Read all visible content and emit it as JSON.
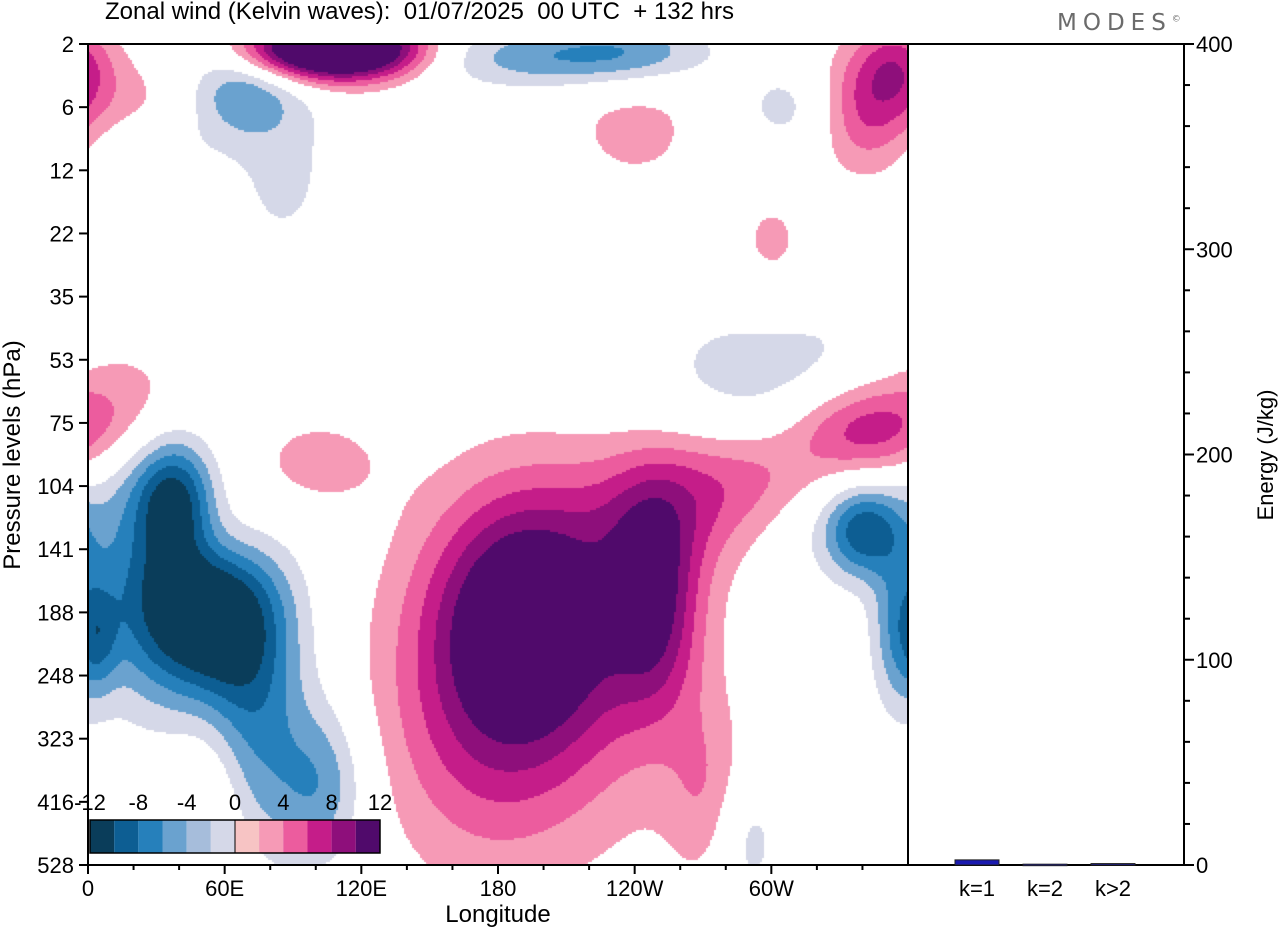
{
  "header": {
    "title": "Zonal wind (Kelvin waves):  01/07/2025  00 UTC  + 132 hrs",
    "brand": "MODES",
    "brand_mark": "©"
  },
  "colors": {
    "neg": [
      "#0a3d5a",
      "#0d5e93",
      "#2680bb",
      "#6aa2cf",
      "#a6bddb",
      "#d5d8e8"
    ],
    "zero": "#ffffff",
    "pos": [
      "#f7c4c4",
      "#f69ab6",
      "#ec5c9e",
      "#c51d89",
      "#8e0f7b",
      "#500a6b"
    ],
    "bar": "#1a1ab0"
  },
  "chart_data": [
    {
      "type": "heatmap",
      "xlabel": "Longitude",
      "ylabel": "Pressure levels (hPa)",
      "x_ticks": [
        {
          "lon": 0,
          "label": "0"
        },
        {
          "lon": 60,
          "label": "60E"
        },
        {
          "lon": 120,
          "label": "120E"
        },
        {
          "lon": 180,
          "label": "180"
        },
        {
          "lon": 240,
          "label": "120W"
        },
        {
          "lon": 300,
          "label": "60W"
        }
      ],
      "xlim": [
        0,
        360
      ],
      "y_levels": [
        "2",
        "6",
        "12",
        "22",
        "35",
        "53",
        "75",
        "104",
        "141",
        "188",
        "248",
        "323",
        "416",
        "528"
      ],
      "colorbar": {
        "levels": [
          -12,
          -10,
          -8,
          -6,
          -4,
          -2,
          0,
          2,
          4,
          6,
          8,
          10,
          12
        ],
        "labels": [
          "-12",
          "-8",
          "-4",
          "0",
          "4",
          "8",
          "12"
        ],
        "label_values": [
          -12,
          -8,
          -4,
          0,
          4,
          8,
          12
        ]
      },
      "blobs": [
        {
          "lon": 53,
          "lev": 9.0,
          "slon": 22,
          "slev": 0.95,
          "amp": -13.5
        },
        {
          "lon": 38,
          "lev": 7.3,
          "slon": 12,
          "slev": 0.7,
          "amp": -10
        },
        {
          "lon": 22,
          "lev": 8.2,
          "slon": 18,
          "slev": 1.5,
          "amp": -5
        },
        {
          "lon": 72,
          "lev": 10.8,
          "slon": 16,
          "slev": 1.4,
          "amp": -6
        },
        {
          "lon": 102,
          "lev": 11.7,
          "slon": 14,
          "slev": 0.9,
          "amp": -5.5
        },
        {
          "lon": 5,
          "lev": 9.4,
          "slon": 6,
          "slev": 0.6,
          "amp": -4
        },
        {
          "lon": 192,
          "lev": 9.0,
          "slon": 28,
          "slev": 1.35,
          "amp": 11
        },
        {
          "lon": 200,
          "lev": 10.0,
          "slon": 45,
          "slev": 2.0,
          "amp": 5
        },
        {
          "lon": 170,
          "lev": 11.0,
          "slon": 30,
          "slev": 1.6,
          "amp": 3
        },
        {
          "lon": 248,
          "lev": 8.8,
          "slon": 14,
          "slev": 1.2,
          "amp": 8.5
        },
        {
          "lon": 258,
          "lev": 7.3,
          "slon": 30,
          "slev": 0.8,
          "amp": 5
        },
        {
          "lon": 300,
          "lev": 6.8,
          "slon": 28,
          "slev": 0.6,
          "amp": 4.5
        },
        {
          "lon": 340,
          "lev": 6.1,
          "slon": 24,
          "slev": 0.55,
          "amp": 8.5
        },
        {
          "lon": 323,
          "lev": 7.0,
          "slon": 30,
          "slev": 1.0,
          "amp": -3
        },
        {
          "lon": 340,
          "lev": 7.7,
          "slon": 12,
          "slev": 0.5,
          "amp": -8
        },
        {
          "lon": 355,
          "lev": 9.3,
          "slon": 8,
          "slev": 0.9,
          "amp": -5
        },
        {
          "lon": 300,
          "lev": 5.3,
          "slon": 45,
          "slev": 1.0,
          "amp": -3
        },
        {
          "lon": 270,
          "lev": 11.8,
          "slon": 12,
          "slev": 1.0,
          "amp": 3
        },
        {
          "lon": 290,
          "lev": 12.6,
          "slon": 10,
          "slev": 0.7,
          "amp": -3
        },
        {
          "lon": 48,
          "lev": 7.8,
          "slon": 20,
          "slev": 0.6,
          "amp": 4
        },
        {
          "lon": 15,
          "lev": 5.5,
          "slon": 22,
          "slev": 0.7,
          "amp": 3.5
        },
        {
          "lon": 55,
          "lev": 12.0,
          "slon": 12,
          "slev": 1.2,
          "amp": 3
        },
        {
          "lon": 100,
          "lev": 6.6,
          "slon": 22,
          "slev": 0.55,
          "amp": 2.8
        },
        {
          "lon": 110,
          "lev": 0.1,
          "slon": 20,
          "slev": 0.35,
          "amp": 13
        },
        {
          "lon": 88,
          "lev": 0.05,
          "slon": 18,
          "slev": 0.3,
          "amp": 8
        },
        {
          "lon": 130,
          "lev": 0.05,
          "slon": 18,
          "slev": 0.3,
          "amp": 6
        },
        {
          "lon": 65,
          "lev": 0.8,
          "slon": 18,
          "slev": 0.5,
          "amp": -6
        },
        {
          "lon": 200,
          "lev": 0.2,
          "slon": 35,
          "slev": 0.35,
          "amp": -5
        },
        {
          "lon": 240,
          "lev": 0.1,
          "slon": 25,
          "slev": 0.35,
          "amp": -4
        },
        {
          "lon": 355,
          "lev": 0.3,
          "slon": 12,
          "slev": 0.5,
          "amp": 5
        },
        {
          "lon": 340,
          "lev": 1.0,
          "slon": 15,
          "slev": 0.7,
          "amp": 6
        },
        {
          "lon": 310,
          "lev": 1.0,
          "slon": 20,
          "slev": 0.5,
          "amp": -3
        },
        {
          "lon": 25,
          "lev": 1.0,
          "slon": 30,
          "slev": 0.6,
          "amp": 2.8
        },
        {
          "lon": 240,
          "lev": 1.3,
          "slon": 25,
          "slev": 0.8,
          "amp": 2.6
        },
        {
          "lon": 300,
          "lev": 3.2,
          "slon": 14,
          "slev": 0.7,
          "amp": 2.6
        },
        {
          "lon": 85,
          "lev": 2.0,
          "slon": 18,
          "slev": 1.1,
          "amp": -2.5
        },
        {
          "lon": 30,
          "lev": 1.6,
          "slon": 20,
          "slev": 0.4,
          "amp": -2.5
        }
      ]
    },
    {
      "type": "bar",
      "categories": [
        "k=1",
        "k=2",
        "k>2"
      ],
      "values": [
        2.5,
        0.4,
        0.7
      ],
      "ylabel": "Energy (J/kg)",
      "ylim": [
        0,
        400
      ],
      "y_ticks": [
        0,
        100,
        200,
        300,
        400
      ]
    }
  ]
}
